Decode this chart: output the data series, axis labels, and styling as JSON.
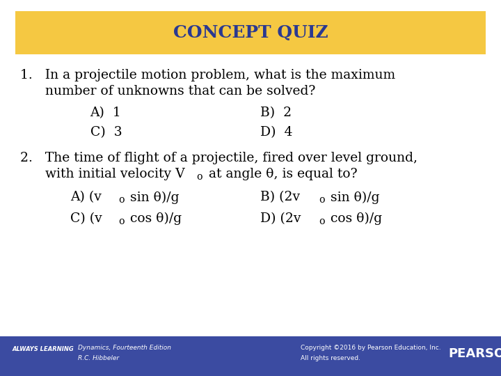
{
  "title": "CONCEPT QUIZ",
  "title_bg_color": "#F5C842",
  "title_text_color": "#2B3990",
  "title_fontsize": 18,
  "body_bg_color": "#FFFFFF",
  "footer_bg_color": "#3B4BA1",
  "footer_text_color": "#FFFFFF",
  "q1_line1": "1.   In a projectile motion problem, what is the maximum",
  "q1_line2": "      number of unknowns that can be solved?",
  "q1_A": "A)  1",
  "q1_B": "B)  2",
  "q1_C": "C)  3",
  "q1_D": "D)  4",
  "q2_line1": "2.   The time of flight of a projectile, fired over level ground,",
  "q2_line2": "      with initial velocity V",
  "q2_line2_sub": "o",
  "q2_line2_rest": " at angle θ, is equal to?",
  "q2_A": "A) (v",
  "q2_A_sub": "o",
  "q2_A_rest": " sin θ)/g",
  "q2_B": "B) (2v",
  "q2_B_sub": "o",
  "q2_B_rest": " sin θ)/g",
  "q2_C": "C) (v",
  "q2_C_sub": "o",
  "q2_C_rest": " cos θ)/g",
  "q2_D": "D) (2v",
  "q2_D_sub": "o",
  "q2_D_rest": " cos θ)/g",
  "footer_left1": "ALWAYS LEARNING",
  "footer_left2": "Dynamics, Fourteenth Edition",
  "footer_left3": "R.C. Hibbeler",
  "footer_right1": "Copyright ©2016 by Pearson Education, Inc.",
  "footer_right2": "All rights reserved.",
  "footer_right3": "PEARSON",
  "main_text_color": "#000000",
  "main_fontsize": 13.5,
  "answer_fontsize": 13.5
}
